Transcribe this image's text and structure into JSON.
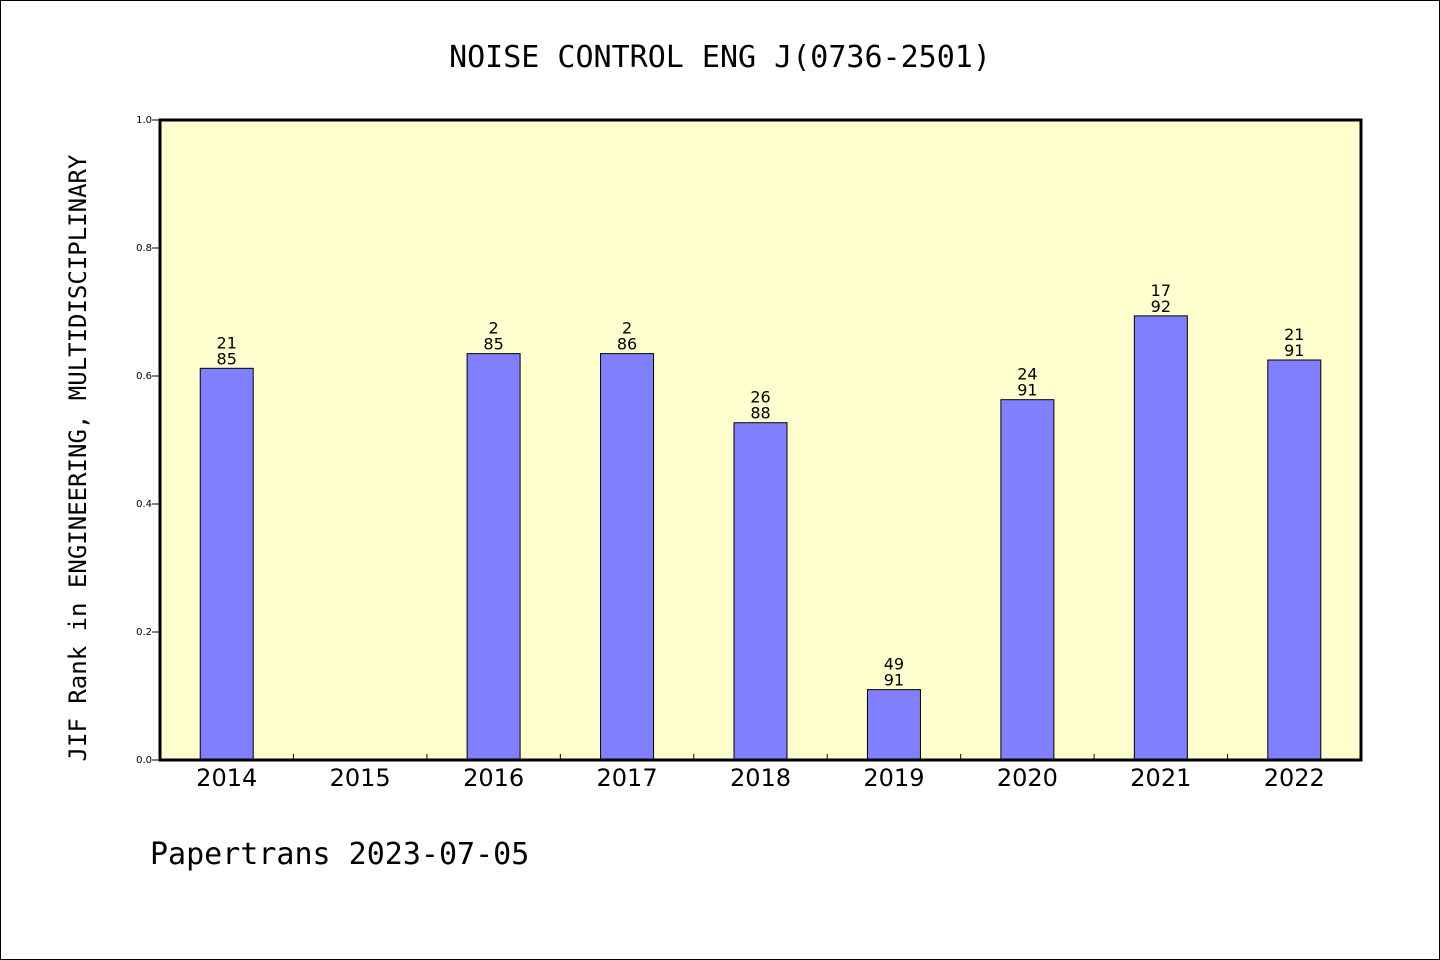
{
  "chart_data": {
    "type": "bar",
    "title": "NOISE CONTROL ENG J(0736-2501)",
    "ylabel": "JIF Rank in ENGINEERING, MULTIDISCIPLINARY",
    "xlabel": "",
    "ylim": [
      0,
      1
    ],
    "yticks": [
      "0.0",
      "0.2",
      "0.4",
      "0.6",
      "0.8",
      "1.0"
    ],
    "grid": false,
    "categories": [
      "2014",
      "2015",
      "2016",
      "2017",
      "2018",
      "2019",
      "2020",
      "2021",
      "2022"
    ],
    "values": [
      0.612,
      null,
      0.635,
      0.635,
      0.527,
      0.11,
      0.563,
      0.694,
      0.625
    ],
    "label_top": [
      "21",
      "",
      "2",
      "2",
      "26",
      "49",
      "24",
      "17",
      "21"
    ],
    "label_bottom": [
      "85",
      "",
      "85",
      "86",
      "88",
      "91",
      "91",
      "92",
      "91"
    ],
    "colors": {
      "bar": "#8080ff",
      "plot_background": "#ffffd0",
      "axis": "#000000"
    }
  },
  "footer": {
    "text": "Papertrans 2023-07-05"
  }
}
